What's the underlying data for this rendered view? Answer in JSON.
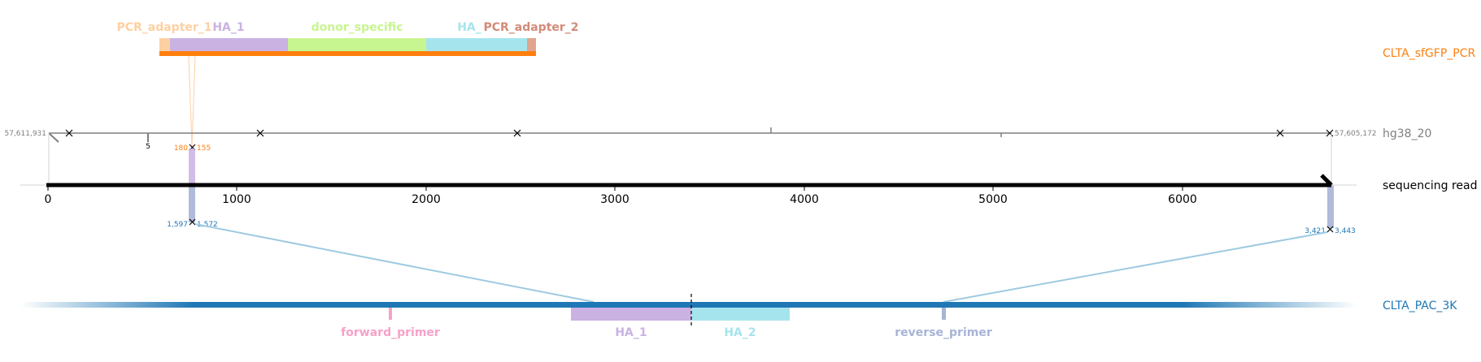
{
  "colors": {
    "pcr_adapter_1": "#fdd0a2",
    "ha_1": "#cab2e3",
    "donor_specific": "#c7f58f",
    "ha_2": "#a6e4ed",
    "pcr_adapter_2": "#e0a48f",
    "pcr_label_2": "#d28b78",
    "orange": "#ff7f0e",
    "blue": "#1f77b4",
    "light_blue": "#9ecae1",
    "grey": "#7f7f7f",
    "forward_primer": "#f7a1c9",
    "reverse_primer": "#a7b4d6"
  },
  "tracks": {
    "amplicon": "CLTA_sfGFP_PCR",
    "genome": "hg38_20",
    "read": "sequencing read",
    "target": "CLTA_PAC_3K"
  },
  "amplicon_features": {
    "pcr_adapter_1": "PCR_adapter_1",
    "ha_1": "HA_1",
    "donor_specific": "donor_specific",
    "ha_2": "HA_",
    "pcr_adapter_2": "PCR_adapter_2"
  },
  "target_features": {
    "forward_primer": "forward_primer",
    "ha_1": "HA_1",
    "ha_2": "HA_2",
    "reverse_primer": "reverse_primer"
  },
  "coordinates": {
    "genome_left": "57,611,931",
    "genome_right": "57,605,172",
    "genome_small": "5",
    "orange_left": "180",
    "orange_right": "155",
    "blue1_left": "1,597",
    "blue1_right": "1,572",
    "blue2_left": "3,421",
    "blue2_right": "3,443"
  },
  "read_axis": {
    "ticks": [
      "0",
      "1000",
      "2000",
      "3000",
      "4000",
      "5000",
      "6000"
    ]
  }
}
